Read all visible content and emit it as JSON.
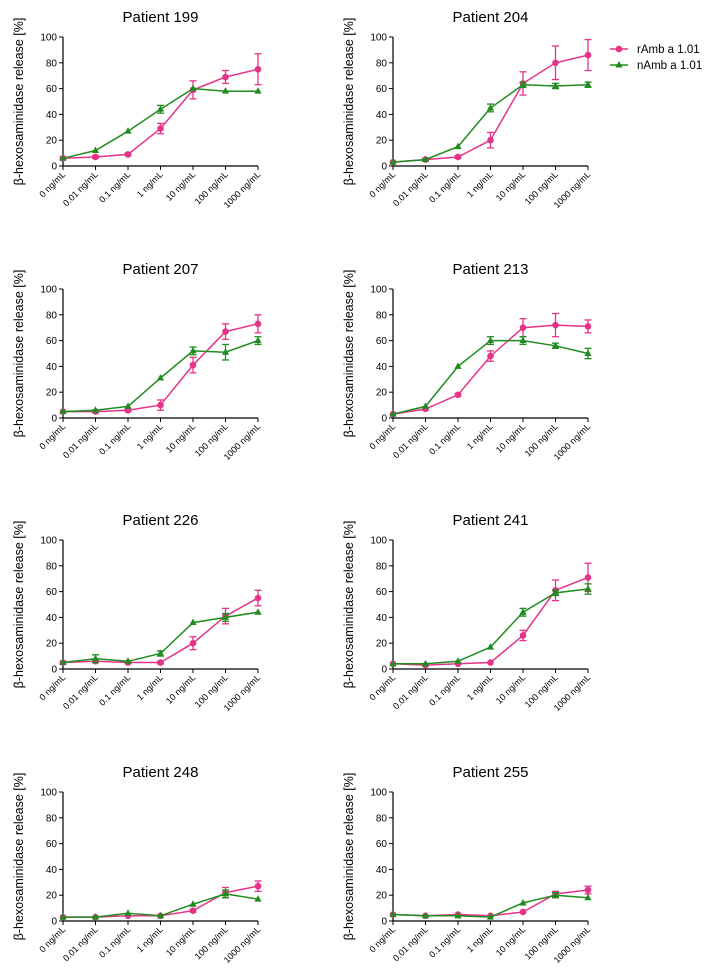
{
  "colors": {
    "rAmb": "#e6338a",
    "nAmb": "#1f8c1f",
    "axis": "#000000"
  },
  "legend": {
    "placement": "top-right",
    "entries": [
      {
        "label": "rAmb a 1.01",
        "marker": "circle"
      },
      {
        "label": "nAmb a 1.01",
        "marker": "triangle"
      }
    ]
  },
  "chart_data": [
    {
      "type": "line",
      "title": "Patient 199",
      "xlabel": "",
      "ylabel": "β-hexosaminidase release [%]",
      "categories": [
        "0 ng/mL",
        "0.01 ng/mL",
        "0.1 ng/mL",
        "1 ng/mL",
        "10 ng/mL",
        "100 ng/mL",
        "1000 ng/mL"
      ],
      "ylim": [
        0,
        100
      ],
      "yticks": [
        0,
        20,
        40,
        60,
        80,
        100
      ],
      "series": [
        {
          "name": "rAmb a 1.01",
          "values": [
            6,
            7,
            9,
            29,
            59,
            69,
            75
          ],
          "errors": [
            1,
            1,
            1,
            4,
            7,
            5,
            12
          ]
        },
        {
          "name": "nAmb a 1.01",
          "values": [
            6,
            12,
            27,
            44,
            60,
            58,
            58
          ],
          "errors": [
            0,
            0,
            0,
            3,
            0,
            0,
            0
          ]
        }
      ]
    },
    {
      "type": "line",
      "title": "Patient 204",
      "xlabel": "",
      "ylabel": "β-hexosaminidase release [%]",
      "categories": [
        "0 ng/mL",
        "0.01 ng/mL",
        "0.1 ng/mL",
        "1 ng/mL",
        "10 ng/mL",
        "100 ng/mL",
        "1000 ng/mL"
      ],
      "ylim": [
        0,
        100
      ],
      "yticks": [
        0,
        20,
        40,
        60,
        80,
        100
      ],
      "series": [
        {
          "name": "rAmb a 1.01",
          "values": [
            3,
            5,
            7,
            20,
            64,
            80,
            86
          ],
          "errors": [
            0,
            1,
            1,
            6,
            9,
            13,
            12
          ]
        },
        {
          "name": "nAmb a 1.01",
          "values": [
            3,
            5,
            15,
            45,
            63,
            62,
            63
          ],
          "errors": [
            0,
            0,
            0,
            3,
            2,
            2,
            2
          ]
        }
      ]
    },
    {
      "type": "line",
      "title": "Patient 207",
      "xlabel": "",
      "ylabel": "β-hexosaminidase release [%]",
      "categories": [
        "0 ng/mL",
        "0.01 ng/mL",
        "0.1 ng/mL",
        "1 ng/mL",
        "10 ng/mL",
        "100 ng/mL",
        "1000 ng/mL"
      ],
      "ylim": [
        0,
        100
      ],
      "yticks": [
        0,
        20,
        40,
        60,
        80,
        100
      ],
      "series": [
        {
          "name": "rAmb a 1.01",
          "values": [
            5,
            5,
            6,
            10,
            41,
            67,
            73
          ],
          "errors": [
            0,
            1,
            1,
            4,
            6,
            6,
            7
          ]
        },
        {
          "name": "nAmb a 1.01",
          "values": [
            5,
            6,
            9,
            31,
            52,
            51,
            60
          ],
          "errors": [
            0,
            0,
            0,
            0,
            3,
            6,
            3
          ]
        }
      ]
    },
    {
      "type": "line",
      "title": "Patient 213",
      "xlabel": "",
      "ylabel": "β-hexosaminidase release [%]",
      "categories": [
        "0 ng/mL",
        "0.01 ng/mL",
        "0.1 ng/mL",
        "1 ng/mL",
        "10 ng/mL",
        "100 ng/mL",
        "1000 ng/mL"
      ],
      "ylim": [
        0,
        100
      ],
      "yticks": [
        0,
        20,
        40,
        60,
        80,
        100
      ],
      "series": [
        {
          "name": "rAmb a 1.01",
          "values": [
            3,
            7,
            18,
            48,
            70,
            72,
            71
          ],
          "errors": [
            0,
            1,
            1,
            4,
            7,
            9,
            5
          ]
        },
        {
          "name": "nAmb a 1.01",
          "values": [
            3,
            9,
            40,
            60,
            60,
            56,
            50
          ],
          "errors": [
            0,
            0,
            0,
            3,
            3,
            2,
            4
          ]
        }
      ]
    },
    {
      "type": "line",
      "title": "Patient 226",
      "xlabel": "",
      "ylabel": "β-hexosaminidase release [%]",
      "categories": [
        "0 ng/mL",
        "0.01 ng/mL",
        "0.1 ng/mL",
        "1 ng/mL",
        "10 ng/mL",
        "100 ng/mL",
        "1000 ng/mL"
      ],
      "ylim": [
        0,
        100
      ],
      "yticks": [
        0,
        20,
        40,
        60,
        80,
        100
      ],
      "series": [
        {
          "name": "rAmb a 1.01",
          "values": [
            5,
            6,
            5,
            5,
            20,
            41,
            55
          ],
          "errors": [
            1,
            1,
            1,
            1,
            5,
            6,
            6
          ]
        },
        {
          "name": "nAmb a 1.01",
          "values": [
            5,
            8,
            6,
            12,
            36,
            40,
            44
          ],
          "errors": [
            0,
            3,
            0,
            2,
            0,
            3,
            0
          ]
        }
      ]
    },
    {
      "type": "line",
      "title": "Patient 241",
      "xlabel": "",
      "ylabel": "β-hexosaminidase release [%]",
      "categories": [
        "0 ng/mL",
        "0.01 ng/mL",
        "0.1 ng/mL",
        "1 ng/mL",
        "10 ng/mL",
        "100 ng/mL",
        "1000 ng/mL"
      ],
      "ylim": [
        0,
        100
      ],
      "yticks": [
        0,
        20,
        40,
        60,
        80,
        100
      ],
      "series": [
        {
          "name": "rAmb a 1.01",
          "values": [
            4,
            3,
            4,
            5,
            26,
            61,
            71
          ],
          "errors": [
            0,
            0,
            0,
            0,
            4,
            8,
            11
          ]
        },
        {
          "name": "nAmb a 1.01",
          "values": [
            4,
            4,
            6,
            17,
            44,
            59,
            62
          ],
          "errors": [
            0,
            0,
            0,
            0,
            3,
            2,
            4
          ]
        }
      ]
    },
    {
      "type": "line",
      "title": "Patient 248",
      "xlabel": "",
      "ylabel": "β-hexosaminidase release [%]",
      "categories": [
        "0 ng/mL",
        "0.01 ng/mL",
        "0.1 ng/mL",
        "1 ng/mL",
        "10 ng/mL",
        "100 ng/mL",
        "1000 ng/mL"
      ],
      "ylim": [
        0,
        100
      ],
      "yticks": [
        0,
        20,
        40,
        60,
        80,
        100
      ],
      "series": [
        {
          "name": "rAmb a 1.01",
          "values": [
            3,
            3,
            4,
            4,
            8,
            22,
            27
          ],
          "errors": [
            0,
            0,
            0,
            0,
            1,
            4,
            4
          ]
        },
        {
          "name": "nAmb a 1.01",
          "values": [
            3,
            3,
            6,
            4,
            13,
            21,
            17
          ],
          "errors": [
            0,
            0,
            0,
            0,
            0,
            3,
            0
          ]
        }
      ]
    },
    {
      "type": "line",
      "title": "Patient 255",
      "xlabel": "",
      "ylabel": "β-hexosaminidase release [%]",
      "categories": [
        "0 ng/mL",
        "0.01 ng/mL",
        "0.1 ng/mL",
        "1 ng/mL",
        "10 ng/mL",
        "100 ng/mL",
        "1000 ng/mL"
      ],
      "ylim": [
        0,
        100
      ],
      "yticks": [
        0,
        20,
        40,
        60,
        80,
        100
      ],
      "series": [
        {
          "name": "rAmb a 1.01",
          "values": [
            5,
            4,
            5,
            4,
            7,
            21,
            24
          ],
          "errors": [
            0,
            0,
            0,
            0,
            0,
            2,
            3
          ]
        },
        {
          "name": "nAmb a 1.01",
          "values": [
            5,
            4,
            4,
            3,
            14,
            20,
            18
          ],
          "errors": [
            0,
            0,
            0,
            0,
            0,
            2,
            0
          ]
        }
      ]
    }
  ]
}
